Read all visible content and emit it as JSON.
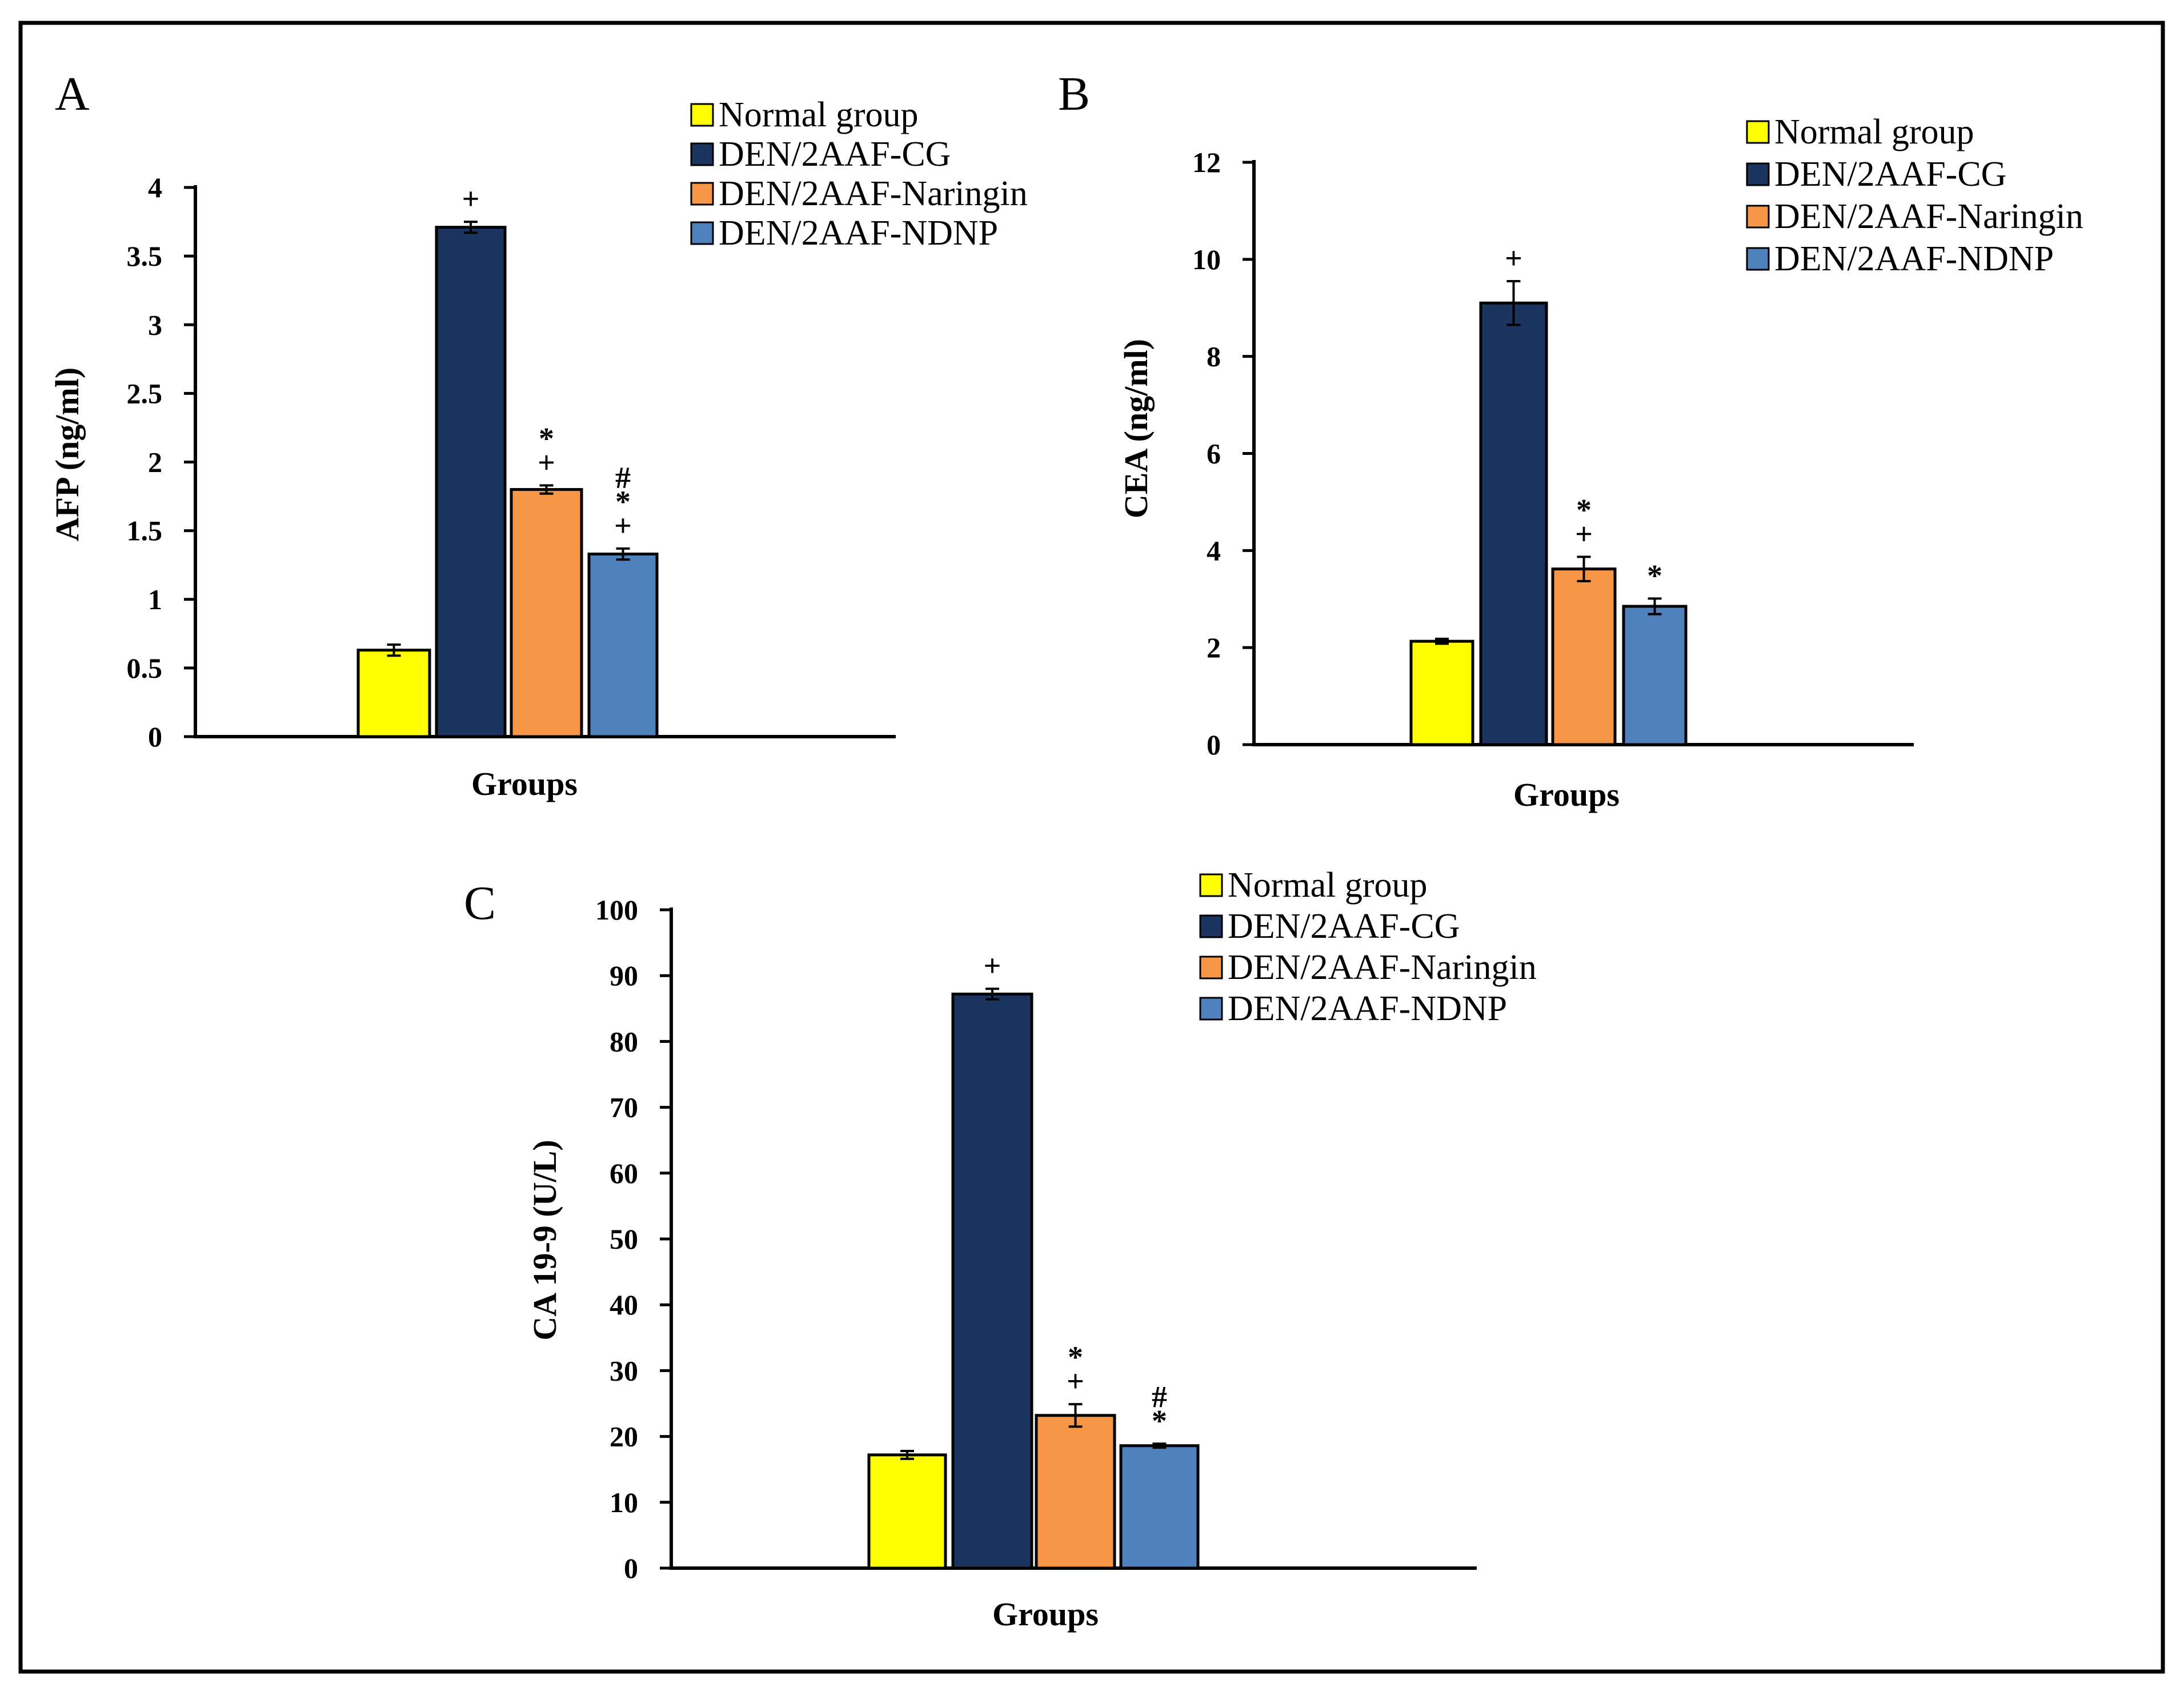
{
  "chart_data": [
    {
      "type": "bar",
      "panel_label": "A",
      "xlabel": "Groups",
      "ylabel": "AFP (ng/ml)",
      "ylim": [
        0,
        4
      ],
      "yticks": [
        "0",
        "0.5",
        "1",
        "1.5",
        "2",
        "2.5",
        "3",
        "3.5",
        "4"
      ],
      "ytick_values": [
        0,
        0.5,
        1,
        1.5,
        2,
        2.5,
        3,
        3.5,
        4
      ],
      "legend": "top-right",
      "grid": false,
      "series": [
        {
          "name": "Normal group",
          "color": "#ffff00",
          "value": 0.63,
          "error": 0.04,
          "sig": []
        },
        {
          "name": "DEN/2AAF-CG",
          "color": "#1b3560",
          "value": 3.71,
          "error": 0.04,
          "sig": [
            "+"
          ]
        },
        {
          "name": "DEN/2AAF-Naringin",
          "color": "#f79646",
          "value": 1.8,
          "error": 0.03,
          "sig": [
            "+",
            "*"
          ]
        },
        {
          "name": "DEN/2AAF-NDNP",
          "color": "#4f81bd",
          "value": 1.33,
          "error": 0.04,
          "sig": [
            "+",
            "*",
            "#"
          ]
        }
      ]
    },
    {
      "type": "bar",
      "panel_label": "B",
      "xlabel": "Groups",
      "ylabel": "CEA (ng/ml)",
      "ylim": [
        0,
        12
      ],
      "yticks": [
        "0",
        "2",
        "4",
        "6",
        "8",
        "10",
        "12"
      ],
      "ytick_values": [
        0,
        2,
        4,
        6,
        8,
        10,
        12
      ],
      "legend": "top-right",
      "grid": false,
      "series": [
        {
          "name": "Normal group",
          "color": "#ffff00",
          "value": 2.13,
          "error": 0.05,
          "sig": []
        },
        {
          "name": "DEN/2AAF-CG",
          "color": "#1b3560",
          "value": 9.1,
          "error": 0.45,
          "sig": [
            "+"
          ]
        },
        {
          "name": "DEN/2AAF-Naringin",
          "color": "#f79646",
          "value": 3.62,
          "error": 0.25,
          "sig": [
            "+",
            "*"
          ]
        },
        {
          "name": "DEN/2AAF-NDNP",
          "color": "#4f81bd",
          "value": 2.85,
          "error": 0.16,
          "sig": [
            "*"
          ]
        }
      ]
    },
    {
      "type": "bar",
      "panel_label": "C",
      "xlabel": "Groups",
      "ylabel": "CA 19-9 (U/L)",
      "ylim": [
        0,
        100
      ],
      "yticks": [
        "0",
        "10",
        "20",
        "30",
        "40",
        "50",
        "60",
        "70",
        "80",
        "90",
        "100"
      ],
      "ytick_values": [
        0,
        10,
        20,
        30,
        40,
        50,
        60,
        70,
        80,
        90,
        100
      ],
      "legend": "top-right",
      "grid": false,
      "series": [
        {
          "name": "Normal group",
          "color": "#ffff00",
          "value": 17.2,
          "error": 0.6,
          "sig": []
        },
        {
          "name": "DEN/2AAF-CG",
          "color": "#1b3560",
          "value": 87.2,
          "error": 0.8,
          "sig": [
            "+"
          ]
        },
        {
          "name": "DEN/2AAF-Naringin",
          "color": "#f79646",
          "value": 23.2,
          "error": 1.7,
          "sig": [
            "+",
            "*"
          ]
        },
        {
          "name": "DEN/2AAF-NDNP",
          "color": "#4f81bd",
          "value": 18.6,
          "error": 0.3,
          "sig": [
            "*",
            "#"
          ]
        }
      ]
    }
  ]
}
